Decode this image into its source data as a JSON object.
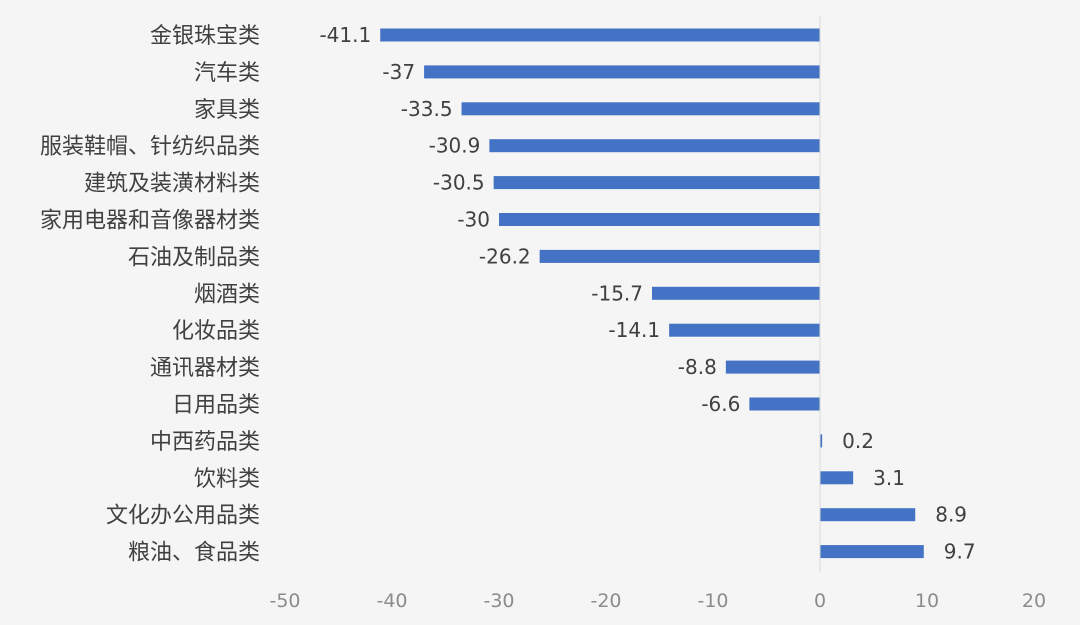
{
  "chart_data": {
    "type": "bar",
    "orientation": "horizontal",
    "categories": [
      "金银珠宝类",
      "汽车类",
      "家具类",
      "服装鞋帽、针纺织品类",
      "建筑及装潢材料类",
      "家用电器和音像器材类",
      "石油及制品类",
      "烟酒类",
      "化妆品类",
      "通讯器材类",
      "日用品类",
      "中西药品类",
      "饮料类",
      "文化办公用品类",
      "粮油、食品类"
    ],
    "values": [
      -41.1,
      -37,
      -33.5,
      -30.9,
      -30.5,
      -30,
      -26.2,
      -15.7,
      -14.1,
      -8.8,
      -6.6,
      0.2,
      3.1,
      8.9,
      9.7
    ],
    "value_labels": [
      "-41.1",
      "-37",
      "-33.5",
      "-30.9",
      "-30.5",
      "-30",
      "-26.2",
      "-15.7",
      "-14.1",
      "-8.8",
      "-6.6",
      "0.2",
      "3.1",
      "8.9",
      "9.7"
    ],
    "xlim": [
      -50,
      20
    ],
    "xticks": [
      -50,
      -40,
      -30,
      -20,
      -10,
      0,
      10,
      20
    ],
    "xtick_labels": [
      "-50",
      "-40",
      "-30",
      "-20",
      "-10",
      "0",
      "10",
      "20"
    ],
    "title": "",
    "xlabel": "",
    "ylabel": "",
    "grid": false,
    "legend": "none",
    "colors": {
      "bar": "#4472c4",
      "axis": "#d9d9d9",
      "label_text": "#404040",
      "tick_text": "#8c8c8c",
      "background": "#f5f5f5"
    }
  }
}
